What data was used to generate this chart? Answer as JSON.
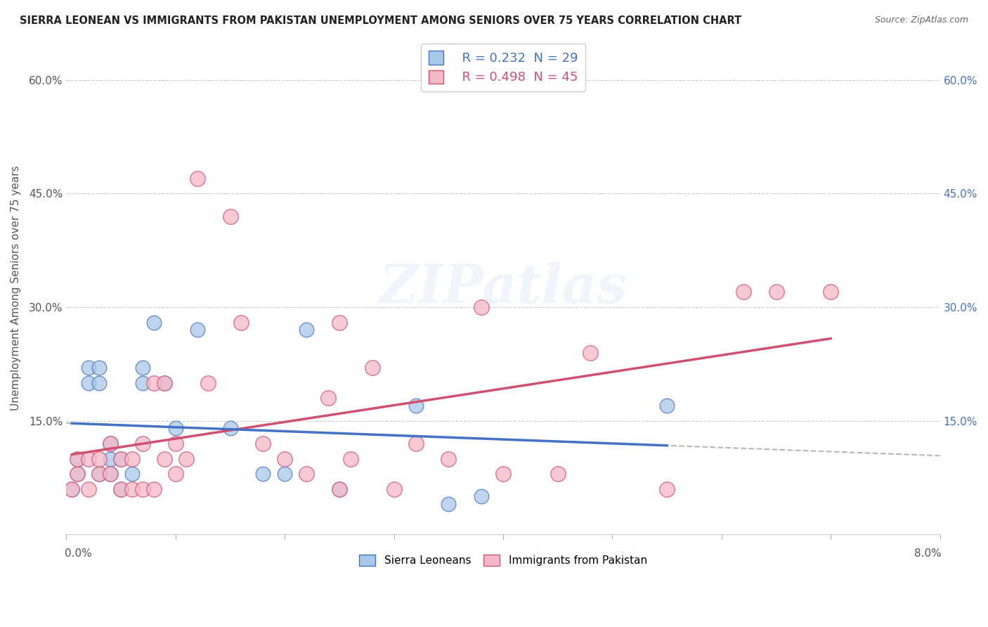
{
  "title": "SIERRA LEONEAN VS IMMIGRANTS FROM PAKISTAN UNEMPLOYMENT AMONG SENIORS OVER 75 YEARS CORRELATION CHART",
  "source": "Source: ZipAtlas.com",
  "ylabel": "Unemployment Among Seniors over 75 years",
  "xlim": [
    0.0,
    0.08
  ],
  "ylim": [
    0.0,
    0.65
  ],
  "legend_r1": "R = 0.232  N = 29",
  "legend_r2": "R = 0.498  N = 45",
  "color_sierra": "#a8c8e8",
  "color_pakistan": "#f5b8c8",
  "color_line_sierra": "#4472c4",
  "color_line_pakistan": "#d05070",
  "color_dashed_gray": "#aaaaaa",
  "background_color": "#ffffff",
  "sierra_x": [
    0.0005,
    0.001,
    0.001,
    0.002,
    0.002,
    0.003,
    0.003,
    0.003,
    0.004,
    0.004,
    0.004,
    0.005,
    0.005,
    0.006,
    0.007,
    0.007,
    0.008,
    0.009,
    0.01,
    0.012,
    0.015,
    0.018,
    0.02,
    0.022,
    0.025,
    0.032,
    0.035,
    0.038,
    0.055
  ],
  "sierra_y": [
    0.06,
    0.08,
    0.1,
    0.2,
    0.22,
    0.08,
    0.2,
    0.22,
    0.08,
    0.1,
    0.12,
    0.06,
    0.1,
    0.08,
    0.2,
    0.22,
    0.28,
    0.2,
    0.14,
    0.27,
    0.14,
    0.08,
    0.08,
    0.27,
    0.06,
    0.17,
    0.04,
    0.05,
    0.17
  ],
  "pakistan_x": [
    0.0005,
    0.001,
    0.001,
    0.002,
    0.002,
    0.003,
    0.003,
    0.004,
    0.004,
    0.005,
    0.005,
    0.006,
    0.006,
    0.007,
    0.007,
    0.008,
    0.008,
    0.009,
    0.009,
    0.01,
    0.01,
    0.011,
    0.012,
    0.013,
    0.015,
    0.016,
    0.018,
    0.02,
    0.022,
    0.024,
    0.025,
    0.025,
    0.026,
    0.028,
    0.03,
    0.032,
    0.035,
    0.038,
    0.04,
    0.045,
    0.048,
    0.055,
    0.062,
    0.065,
    0.07
  ],
  "pakistan_y": [
    0.06,
    0.08,
    0.1,
    0.06,
    0.1,
    0.08,
    0.1,
    0.08,
    0.12,
    0.06,
    0.1,
    0.06,
    0.1,
    0.06,
    0.12,
    0.06,
    0.2,
    0.1,
    0.2,
    0.08,
    0.12,
    0.1,
    0.47,
    0.2,
    0.42,
    0.28,
    0.12,
    0.1,
    0.08,
    0.18,
    0.28,
    0.06,
    0.1,
    0.22,
    0.06,
    0.12,
    0.1,
    0.3,
    0.08,
    0.08,
    0.24,
    0.06,
    0.32,
    0.32,
    0.32
  ],
  "ytick_vals": [
    0.0,
    0.15,
    0.3,
    0.45,
    0.6
  ],
  "ytick_labels_left": [
    "",
    "15.0%",
    "30.0%",
    "45.0%",
    "60.0%"
  ],
  "ytick_labels_right": [
    "",
    "15.0%",
    "30.0%",
    "45.0%",
    "60.0%"
  ],
  "right_tick_color": "#4472c4",
  "left_tick_color": "#555555"
}
